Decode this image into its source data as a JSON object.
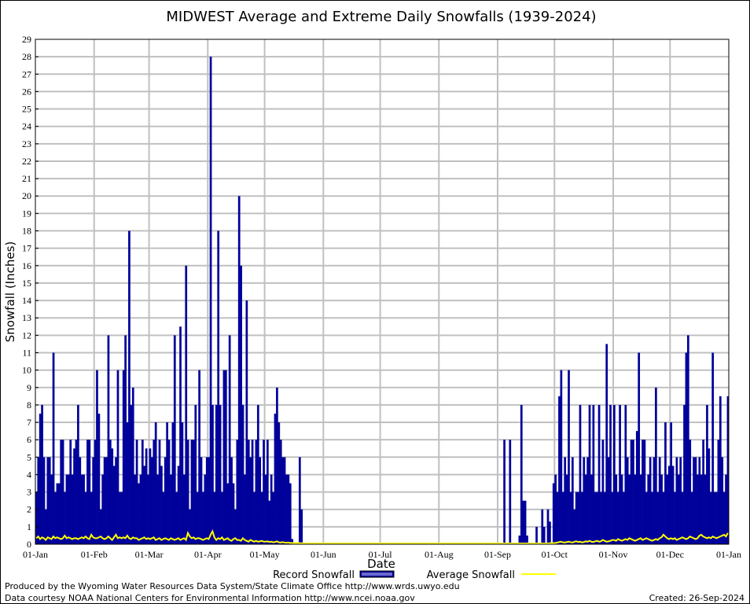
{
  "chart_data": {
    "type": "bar",
    "title": "MIDWEST Average and Extreme Daily Snowfalls (1939-2024)",
    "xlabel": "Date",
    "ylabel": "Snowfall (Inches)",
    "ylim": [
      0,
      29
    ],
    "grid": true,
    "legend_placement": "bottom-center",
    "x_tick_labels": [
      "01-Jan",
      "01-Feb",
      "01-Mar",
      "01-Apr",
      "01-May",
      "01-Jun",
      "01-Jul",
      "01-Aug",
      "01-Sep",
      "01-Oct",
      "01-Nov",
      "01-Dec",
      "01-Jan"
    ],
    "month_lengths": [
      31,
      29,
      31,
      30,
      31,
      30,
      31,
      31,
      30,
      31,
      30,
      31
    ],
    "y_tick_labels": [
      "0",
      "1",
      "2",
      "3",
      "4",
      "5",
      "6",
      "7",
      "8",
      "9",
      "10",
      "11",
      "12",
      "13",
      "14",
      "15",
      "16",
      "17",
      "18",
      "19",
      "20",
      "21",
      "22",
      "23",
      "24",
      "25",
      "26",
      "27",
      "28",
      "29"
    ],
    "series": [
      {
        "name": "Record Snowfall",
        "type": "bar",
        "color": "#00009b",
        "values": [
          3,
          5,
          7.5,
          8,
          5,
          2,
          5,
          5,
          4,
          11,
          3,
          3.5,
          3.5,
          6,
          6,
          3,
          4,
          4,
          6,
          4,
          5.5,
          6,
          8,
          5,
          4,
          4,
          3,
          6,
          6,
          3,
          5,
          6,
          10,
          7.5,
          2,
          4,
          5,
          5,
          12,
          6,
          5.5,
          4.5,
          5,
          10,
          3,
          3,
          10,
          12,
          7,
          18,
          8,
          9,
          4,
          6,
          3.5,
          4,
          6,
          4.5,
          5.5,
          4,
          5.5,
          5,
          6,
          7,
          4,
          6,
          4.5,
          3,
          5,
          7,
          6,
          4,
          7,
          12,
          3,
          4.5,
          12.5,
          7,
          4,
          16,
          6,
          2,
          6,
          6,
          8,
          3,
          10,
          5,
          3,
          4,
          5,
          5,
          28,
          8,
          3,
          8,
          18,
          8,
          3,
          10,
          10,
          3.5,
          12,
          5,
          3.5,
          2,
          6,
          20,
          16,
          8,
          4,
          14,
          6,
          5,
          6,
          3,
          6,
          8,
          5,
          3,
          6,
          4,
          6,
          2.5,
          4,
          3,
          7.5,
          9,
          7,
          6,
          5,
          5,
          4,
          4,
          3.5,
          0.3,
          0,
          0,
          0,
          5,
          2,
          0,
          0,
          0,
          0,
          0,
          0,
          0,
          0,
          0,
          0,
          0,
          0,
          0,
          0,
          0,
          0,
          0,
          0,
          0,
          0,
          0,
          0,
          0,
          0,
          0,
          0,
          0,
          0,
          0,
          0,
          0,
          0,
          0,
          0,
          0,
          0,
          0,
          0,
          0,
          0,
          0,
          0,
          0,
          0,
          0,
          0,
          0,
          0,
          0,
          0,
          0,
          0,
          0,
          0,
          0,
          0,
          0,
          0,
          0,
          0,
          0,
          0,
          0,
          0,
          0,
          0,
          0,
          0,
          0,
          0,
          0,
          0,
          0,
          0,
          0,
          0,
          0,
          0,
          0,
          0,
          0,
          0,
          0,
          0,
          0,
          0,
          0,
          0,
          0,
          0,
          0,
          0,
          0,
          0,
          0,
          0,
          0,
          0,
          0,
          0,
          0,
          0,
          0,
          0,
          0,
          0,
          6,
          0,
          0,
          6,
          0,
          0,
          0,
          0,
          0.5,
          8,
          2.5,
          2.5,
          0.5,
          0,
          0,
          0,
          0,
          1,
          0,
          0,
          2,
          1,
          0,
          2,
          1.3,
          0,
          3.5,
          4,
          3,
          8.5,
          10,
          3,
          5,
          4,
          10,
          3,
          5,
          2,
          3,
          3,
          8,
          3,
          5,
          4,
          5,
          8,
          4,
          8,
          3,
          3,
          8,
          3,
          6,
          3,
          11.5,
          5,
          8,
          3,
          8,
          4,
          3,
          8,
          4,
          3,
          8,
          5,
          4,
          6,
          6,
          4,
          6.5,
          11,
          4,
          6,
          6,
          3,
          4,
          5,
          3,
          5,
          9,
          3,
          5,
          4,
          3,
          7,
          4,
          4.5,
          7,
          4.5,
          3,
          5,
          4,
          5,
          3,
          8,
          11,
          12,
          6,
          3,
          5,
          5,
          4,
          5,
          4,
          6,
          4,
          8,
          5.5,
          3,
          11,
          3,
          3,
          6,
          8.5,
          5,
          3,
          4,
          8.5
        ]
      },
      {
        "name": "Average Snowfall",
        "type": "line",
        "color": "#ffff00",
        "values": [
          0.3,
          0.4,
          0.25,
          0.35,
          0.3,
          0.2,
          0.35,
          0.3,
          0.25,
          0.4,
          0.3,
          0.35,
          0.3,
          0.25,
          0.3,
          0.45,
          0.3,
          0.35,
          0.3,
          0.25,
          0.3,
          0.3,
          0.25,
          0.3,
          0.35,
          0.3,
          0.4,
          0.3,
          0.25,
          0.5,
          0.35,
          0.3,
          0.3,
          0.35,
          0.4,
          0.3,
          0.25,
          0.3,
          0.4,
          0.3,
          0.2,
          0.35,
          0.5,
          0.3,
          0.35,
          0.3,
          0.35,
          0.3,
          0.45,
          0.3,
          0.25,
          0.35,
          0.3,
          0.3,
          0.2,
          0.25,
          0.3,
          0.35,
          0.25,
          0.3,
          0.25,
          0.3,
          0.35,
          0.2,
          0.25,
          0.3,
          0.2,
          0.25,
          0.3,
          0.25,
          0.2,
          0.3,
          0.25,
          0.2,
          0.25,
          0.3,
          0.2,
          0.25,
          0.3,
          0.2,
          0.6,
          0.4,
          0.3,
          0.35,
          0.25,
          0.3,
          0.3,
          0.25,
          0.2,
          0.25,
          0.3,
          0.25,
          0.5,
          0.7,
          0.35,
          0.2,
          0.3,
          0.25,
          0.35,
          0.2,
          0.25,
          0.3,
          0.2,
          0.15,
          0.25,
          0.3,
          0.2,
          0.2,
          0.15,
          0.3,
          0.2,
          0.15,
          0.1,
          0.2,
          0.15,
          0.1,
          0.15,
          0.1,
          0.12,
          0.15,
          0.1,
          0.1,
          0.12,
          0.08,
          0.1,
          0.07,
          0.08,
          0.12,
          0.06,
          0.05,
          0.07,
          0.05,
          0.04,
          0.05,
          0.03,
          0.03,
          0.02,
          0.02,
          0.03,
          0.02,
          0.01,
          0,
          0,
          0,
          0,
          0,
          0,
          0,
          0,
          0,
          0,
          0,
          0,
          0,
          0,
          0,
          0,
          0,
          0,
          0,
          0,
          0,
          0,
          0,
          0,
          0,
          0,
          0,
          0,
          0,
          0,
          0,
          0,
          0,
          0,
          0,
          0,
          0,
          0,
          0,
          0,
          0,
          0,
          0,
          0,
          0,
          0,
          0,
          0,
          0,
          0,
          0,
          0,
          0,
          0,
          0,
          0,
          0,
          0,
          0,
          0,
          0,
          0,
          0,
          0,
          0,
          0,
          0,
          0,
          0,
          0,
          0,
          0,
          0,
          0,
          0,
          0,
          0,
          0,
          0,
          0,
          0,
          0,
          0,
          0,
          0,
          0,
          0,
          0,
          0,
          0,
          0,
          0,
          0,
          0,
          0,
          0,
          0,
          0,
          0,
          0,
          0,
          0,
          0,
          0,
          0,
          0,
          0,
          0,
          0,
          0,
          0,
          0,
          0,
          0,
          0,
          0,
          0,
          0,
          0,
          0,
          0,
          0,
          0,
          0,
          0,
          0,
          0,
          0,
          0,
          0,
          0.01,
          0.02,
          0.02,
          0.03,
          0.05,
          0.08,
          0.1,
          0.06,
          0.05,
          0.08,
          0.1,
          0.07,
          0.05,
          0.1,
          0.12,
          0.08,
          0.1,
          0.06,
          0.08,
          0.12,
          0.1,
          0.15,
          0.1,
          0.08,
          0.12,
          0.15,
          0.1,
          0.12,
          0.2,
          0.15,
          0.1,
          0.12,
          0.15,
          0.2,
          0.2,
          0.15,
          0.25,
          0.2,
          0.15,
          0.2,
          0.25,
          0.2,
          0.3,
          0.25,
          0.2,
          0.15,
          0.2,
          0.25,
          0.3,
          0.2,
          0.25,
          0.3,
          0.25,
          0.2,
          0.15,
          0.2,
          0.25,
          0.2,
          0.3,
          0.35,
          0.5,
          0.4,
          0.3,
          0.25,
          0.3,
          0.25,
          0.3,
          0.2,
          0.25,
          0.3,
          0.35,
          0.3,
          0.25,
          0.3,
          0.4,
          0.35,
          0.3,
          0.25,
          0.3,
          0.45,
          0.5,
          0.4,
          0.35,
          0.3,
          0.35,
          0.3,
          0.4,
          0.35,
          0.3,
          0.35,
          0.4,
          0.45,
          0.5,
          0.4,
          0.6
        ]
      }
    ]
  },
  "legend": {
    "record_label": "Record Snowfall",
    "average_label": "Average Snowfall"
  },
  "footer": {
    "produced_by": "Produced by the Wyoming Water Resources Data System/State Climate Office http://www.wrds.uwyo.edu",
    "data_source": "Data courtesy NOAA National Centers for Environmental Information http://www.ncei.noaa.gov",
    "created": "Created:  26-Sep-2024"
  }
}
